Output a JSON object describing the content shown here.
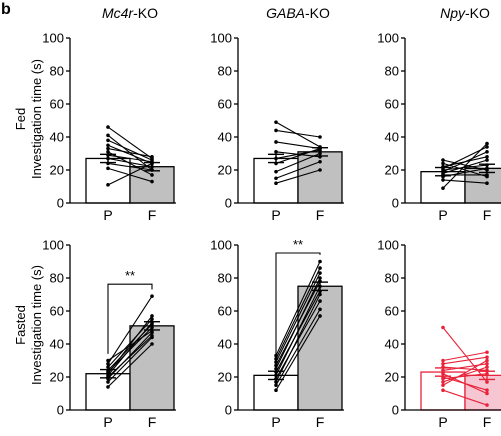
{
  "figure": {
    "panel_letter": "b",
    "row_labels": [
      {
        "condition": "Fed",
        "ylabel": "Investigation time (s)"
      },
      {
        "condition": "Fasted",
        "ylabel": "Investigation time (s)"
      }
    ]
  },
  "chart_data": [
    {
      "type": "bar",
      "row": 0,
      "col": 0,
      "title": "Mc4r-KO",
      "title_italic": "Mc4r",
      "title_rest": "-KO",
      "categories": [
        "P",
        "F"
      ],
      "values": [
        27,
        22
      ],
      "ylim": [
        0,
        100
      ],
      "yticks": [
        0,
        20,
        40,
        60,
        80,
        100
      ],
      "bar_fills": [
        "#ffffff",
        "#c0c0c0"
      ],
      "color": "#000000",
      "paired": [
        [
          46,
          27
        ],
        [
          41,
          20
        ],
        [
          38,
          26
        ],
        [
          35,
          24
        ],
        [
          33,
          28
        ],
        [
          31,
          17
        ],
        [
          29,
          25
        ],
        [
          27,
          22
        ],
        [
          24,
          20
        ],
        [
          21,
          13
        ],
        [
          11,
          24
        ]
      ],
      "significance": ""
    },
    {
      "type": "bar",
      "row": 0,
      "col": 1,
      "title": "GABA-KO",
      "title_italic": "GABA",
      "title_rest": "-KO",
      "categories": [
        "P",
        "F"
      ],
      "values": [
        27,
        31
      ],
      "ylim": [
        0,
        100
      ],
      "yticks": [
        0,
        20,
        40,
        60,
        80,
        100
      ],
      "bar_fills": [
        "#ffffff",
        "#c0c0c0"
      ],
      "color": "#000000",
      "paired": [
        [
          49,
          34
        ],
        [
          44,
          40
        ],
        [
          37,
          33
        ],
        [
          31,
          28
        ],
        [
          27,
          32
        ],
        [
          24,
          33
        ],
        [
          19,
          30
        ],
        [
          15,
          25
        ],
        [
          12,
          20
        ]
      ],
      "significance": ""
    },
    {
      "type": "bar",
      "row": 0,
      "col": 2,
      "title": "Npy-KO",
      "title_italic": "Npy",
      "title_rest": "-KO",
      "categories": [
        "P",
        "F"
      ],
      "values": [
        19,
        21
      ],
      "ylim": [
        0,
        100
      ],
      "yticks": [
        0,
        20,
        40,
        60,
        80,
        100
      ],
      "bar_fills": [
        "#ffffff",
        "#c0c0c0"
      ],
      "color": "#000000",
      "paired": [
        [
          26,
          20
        ],
        [
          24,
          16
        ],
        [
          22,
          28
        ],
        [
          21,
          34
        ],
        [
          20,
          23
        ],
        [
          19,
          31
        ],
        [
          18,
          26
        ],
        [
          17,
          17
        ],
        [
          16,
          21
        ],
        [
          14,
          12
        ],
        [
          9,
          36
        ]
      ],
      "significance": ""
    },
    {
      "type": "bar",
      "row": 1,
      "col": 0,
      "title": "",
      "categories": [
        "P",
        "F"
      ],
      "values": [
        22,
        51
      ],
      "ylim": [
        0,
        100
      ],
      "yticks": [
        0,
        20,
        40,
        60,
        80,
        100
      ],
      "bar_fills": [
        "#ffffff",
        "#c0c0c0"
      ],
      "color": "#000000",
      "paired": [
        [
          30,
          48
        ],
        [
          28,
          69
        ],
        [
          26,
          55
        ],
        [
          24,
          52
        ],
        [
          23,
          50
        ],
        [
          22,
          57
        ],
        [
          21,
          53
        ],
        [
          20,
          45
        ],
        [
          19,
          47
        ],
        [
          17,
          44
        ],
        [
          14,
          40
        ]
      ],
      "significance": "**"
    },
    {
      "type": "bar",
      "row": 1,
      "col": 1,
      "title": "",
      "categories": [
        "P",
        "F"
      ],
      "values": [
        21,
        75
      ],
      "ylim": [
        0,
        100
      ],
      "yticks": [
        0,
        20,
        40,
        60,
        80,
        100
      ],
      "bar_fills": [
        "#ffffff",
        "#c0c0c0"
      ],
      "color": "#000000",
      "paired": [
        [
          33,
          90
        ],
        [
          31,
          86
        ],
        [
          29,
          83
        ],
        [
          27,
          78
        ],
        [
          25,
          80
        ],
        [
          23,
          72
        ],
        [
          21,
          75
        ],
        [
          19,
          66
        ],
        [
          17,
          70
        ],
        [
          15,
          61
        ],
        [
          12,
          57
        ]
      ],
      "significance": "**"
    },
    {
      "type": "bar",
      "row": 1,
      "col": 2,
      "title": "",
      "categories": [
        "P",
        "F"
      ],
      "values": [
        23,
        21
      ],
      "ylim": [
        0,
        100
      ],
      "yticks": [
        0,
        20,
        40,
        60,
        80,
        100
      ],
      "bar_fills": [
        "#ffffff",
        "#f6c6d3"
      ],
      "color": "#e8233a",
      "paired": [
        [
          50,
          17
        ],
        [
          30,
          35
        ],
        [
          28,
          32
        ],
        [
          26,
          24
        ],
        [
          24,
          28
        ],
        [
          22,
          10
        ],
        [
          20,
          12
        ],
        [
          19,
          22
        ],
        [
          17,
          26
        ],
        [
          15,
          30
        ],
        [
          12,
          3
        ]
      ],
      "significance": ""
    }
  ]
}
